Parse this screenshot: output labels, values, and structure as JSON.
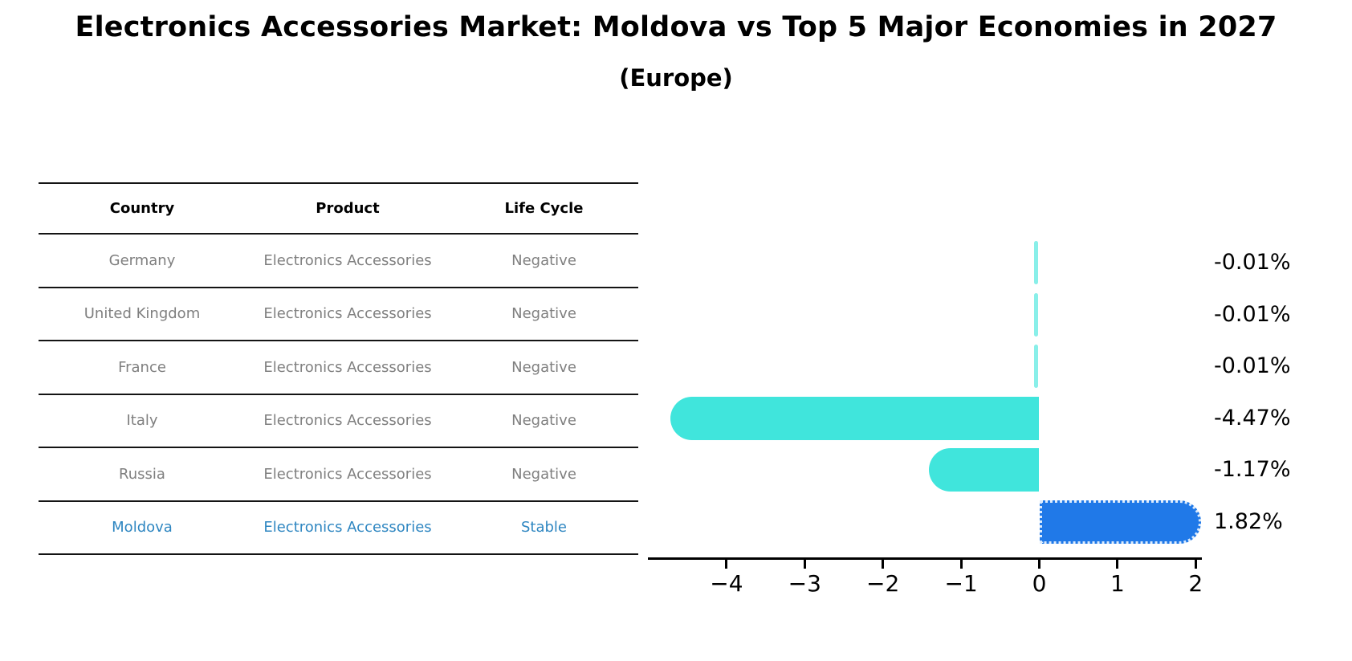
{
  "title": "Electronics Accessories Market: Moldova vs Top 5 Major Economies in 2027",
  "subtitle": "(Europe)",
  "table": {
    "headers": [
      "Country",
      "Product",
      "Life Cycle"
    ],
    "rows": [
      {
        "country": "Germany",
        "product": "Electronics Accessories",
        "life_cycle": "Negative",
        "highlighted": false
      },
      {
        "country": "United Kingdom",
        "product": "Electronics Accessories",
        "life_cycle": "Negative",
        "highlighted": false
      },
      {
        "country": "France",
        "product": "Electronics Accessories",
        "life_cycle": "Negative",
        "highlighted": false
      },
      {
        "country": "Italy",
        "product": "Electronics Accessories",
        "life_cycle": "Negative",
        "highlighted": false
      },
      {
        "country": "Russia",
        "product": "Electronics Accessories",
        "life_cycle": "Negative",
        "highlighted": false
      },
      {
        "country": "Moldova",
        "product": "Electronics Accessories",
        "life_cycle": "Stable",
        "highlighted": true
      }
    ]
  },
  "chart_data": {
    "type": "bar",
    "orientation": "horizontal",
    "title": "Electronics Accessories Market: Moldova vs Top 5 Major Economies in 2027 (Europe)",
    "categories": [
      "Germany",
      "United Kingdom",
      "France",
      "Italy",
      "Russia",
      "Moldova"
    ],
    "values": [
      -0.01,
      -0.01,
      -0.01,
      -4.47,
      -1.17,
      1.82
    ],
    "value_labels": [
      "-0.01%",
      "-0.01%",
      "-0.01%",
      "-4.47%",
      "-1.17%",
      "1.82%"
    ],
    "units": "percent",
    "x_tick_values": [
      -4,
      -3,
      -2,
      -1,
      0,
      1,
      2
    ],
    "x_tick_labels": [
      "−4",
      "−3",
      "−2",
      "−1",
      "0",
      "1",
      "2"
    ],
    "xlim": [
      -5.0,
      2.07
    ],
    "grid": false,
    "legend": false,
    "colors": {
      "negative_bar": "#40E5DC",
      "positive_bar": "#2079E8",
      "positive_bar_border": "#DCEBFC",
      "highlight_text": "#2E86C1",
      "row_text": "#7F7F7F",
      "axis": "#000000"
    }
  }
}
